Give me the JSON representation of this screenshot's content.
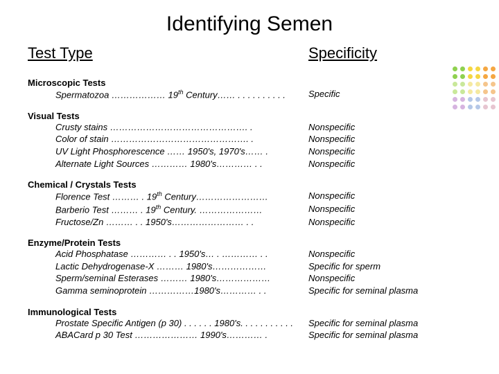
{
  "title": "Identifying Semen",
  "headers": {
    "left": "Test Type",
    "right": "Specificity"
  },
  "dots": {
    "colors": [
      "#8fd14f",
      "#8fd14f",
      "#f5d742",
      "#f5d742",
      "#f5a742",
      "#f5a742",
      "#8fd14f",
      "#8fd14f",
      "#f5d742",
      "#f5d742",
      "#f5a742",
      "#f5a742",
      "#c9e89a",
      "#c9e89a",
      "#f5e9a0",
      "#f5e9a0",
      "#f5c58c",
      "#f5c58c",
      "#c9e89a",
      "#c9e89a",
      "#f5e9a0",
      "#f5e9a0",
      "#f5c58c",
      "#f5c58c",
      "#d6b4e0",
      "#d6b4e0",
      "#b5c7e7",
      "#b5c7e7",
      "#e7c5d0",
      "#e7c5d0",
      "#d6b4e0",
      "#d6b4e0",
      "#b5c7e7",
      "#b5c7e7",
      "#e7c5d0",
      "#e7c5d0"
    ]
  },
  "sections": [
    {
      "title": "Microscopic Tests",
      "rows": [
        {
          "left": "Spermatozoa ……………… 19<sup>th</sup> Century…… . . . . . . . . . .",
          "right": "Specific"
        }
      ]
    },
    {
      "title": "Visual Tests",
      "rows": [
        {
          "left": "Crusty stains ………………………………………. .",
          "right": "Nonspecific"
        },
        {
          "left": "Color of stain ………………………………………. .",
          "right": "Nonspecific"
        },
        {
          "left": "UV Light Phosphorescence …… 1950's, 1970's…… .",
          "right": "Nonspecific"
        },
        {
          "left": "Alternate Light Sources ………… 1980's………… . .",
          "right": "Nonspecific"
        }
      ]
    },
    {
      "title": "Chemical / Crystals Tests",
      "rows": [
        {
          "left": "Florence Test ……… . 19<sup>th</sup> Century……………………",
          "right": "Nonspecific"
        },
        {
          "left": "Barberio Test ……… . 19<sup>th</sup> Century. …………………",
          "right": "Nonspecific"
        },
        {
          "left": "Fructose/Zn   ……… . . 1950's…………………… . .",
          "right": "Nonspecific"
        }
      ]
    },
    {
      "title": "Enzyme/Protein Tests",
      "rows": [
        {
          "left": "Acid Phosphatase ………… . . 1950's… . ………… . .",
          "right": "Nonspecific"
        },
        {
          "left": "Lactic Dehydrogenase-X ……… 1980's………………",
          "right": "Specific for sperm"
        },
        {
          "left": "Sperm/seminal Esterases ……… 1980's………………",
          "right": "Nonspecific"
        },
        {
          "left": "Gamma seminoprotein ……………1980's………… . .",
          "right": "Specific for seminal plasma"
        }
      ]
    },
    {
      "title": "Immunological Tests",
      "rows": [
        {
          "left": "Prostate Specific Antigen (p 30) . . . . . . 1980's. . . . . . . . . . .",
          "right": "Specific for seminal plasma"
        },
        {
          "left": "ABACard p 30 Test ………………… 1990's………… .",
          "right": "Specific for seminal plasma"
        }
      ]
    }
  ]
}
